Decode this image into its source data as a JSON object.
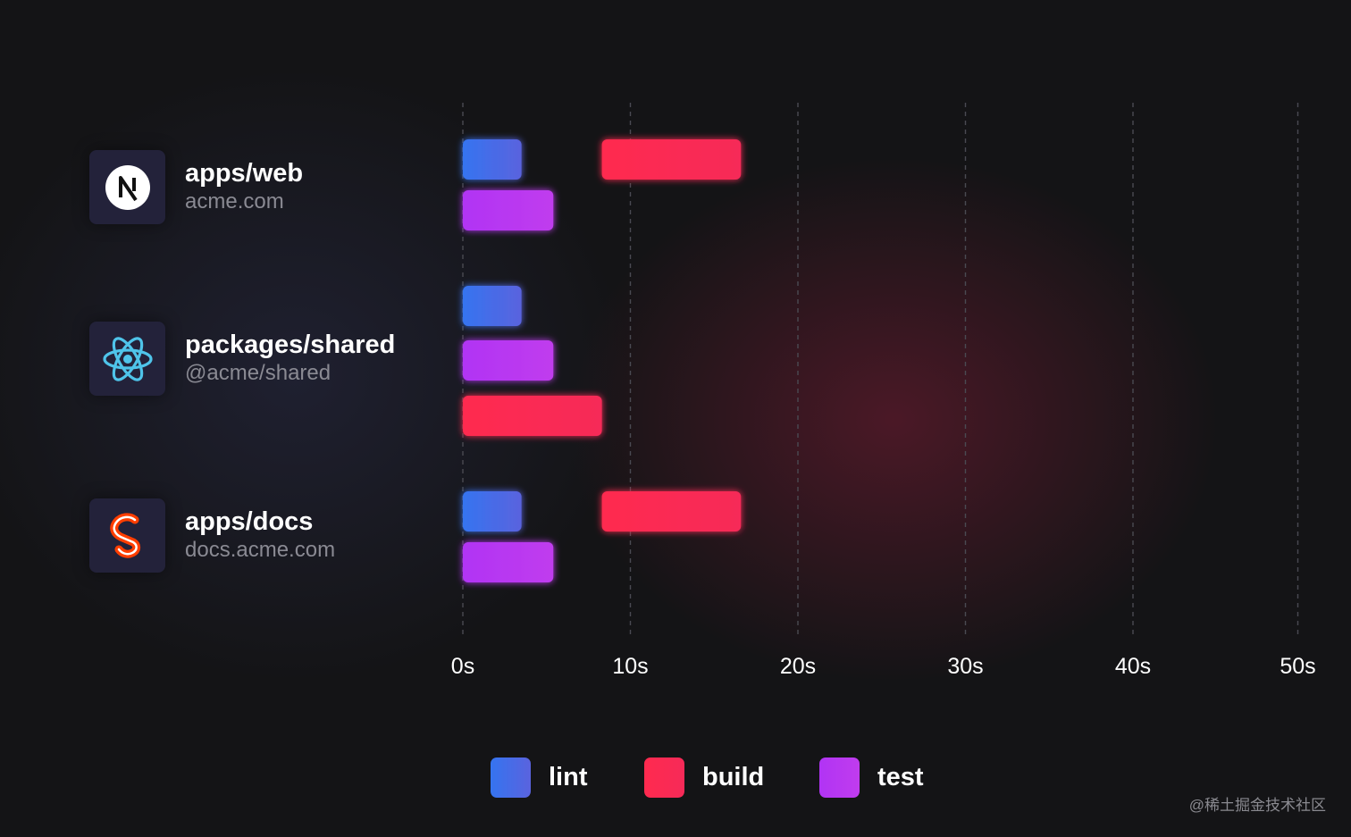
{
  "projects": [
    {
      "name": "apps/web",
      "sub": "acme.com",
      "icon": "nextjs-icon"
    },
    {
      "name": "packages/shared",
      "sub": "@acme/shared",
      "icon": "react-icon"
    },
    {
      "name": "apps/docs",
      "sub": "docs.acme.com",
      "icon": "svelte-icon"
    }
  ],
  "legend": [
    {
      "label": "lint",
      "color": "#3f6df0"
    },
    {
      "label": "build",
      "color": "#f8294f"
    },
    {
      "label": "test",
      "color": "#b33bf3"
    }
  ],
  "watermark": "@稀土掘金技术社区",
  "chart_data": {
    "type": "bar",
    "orientation": "horizontal",
    "x_ticks": [
      "0s",
      "10s",
      "20s",
      "30s",
      "40s",
      "50s"
    ],
    "xlim": [
      0,
      50
    ],
    "grid": true,
    "legend_position": "bottom",
    "rows": [
      {
        "project": "apps/web",
        "bars": [
          {
            "task": "lint",
            "start": 0,
            "end": 3.5
          },
          {
            "task": "build",
            "start": 8.3,
            "end": 16.6
          },
          {
            "task": "test",
            "start": 0,
            "end": 5.4
          }
        ]
      },
      {
        "project": "packages/shared",
        "bars": [
          {
            "task": "lint",
            "start": 0,
            "end": 3.5
          },
          {
            "task": "test",
            "start": 0,
            "end": 5.4
          },
          {
            "task": "build",
            "start": 0,
            "end": 8.3
          }
        ]
      },
      {
        "project": "apps/docs",
        "bars": [
          {
            "task": "lint",
            "start": 0,
            "end": 3.5
          },
          {
            "task": "build",
            "start": 8.3,
            "end": 16.6
          },
          {
            "task": "test",
            "start": 0,
            "end": 5.4
          }
        ]
      }
    ]
  }
}
